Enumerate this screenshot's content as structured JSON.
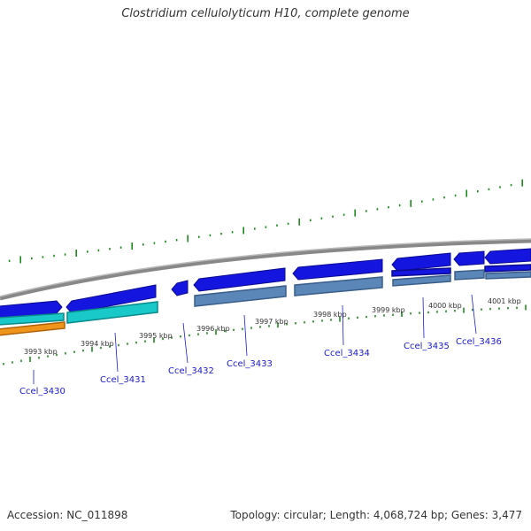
{
  "title": "Clostridium cellulolyticum H10, complete genome",
  "footer": {
    "accession": "Accession: NC_011898",
    "topology": "Topology: circular; Length: 4,068,724 bp; Genes: 3,477"
  },
  "colors": {
    "backbone": "#888888",
    "tick": "#1e8a1e",
    "gene_blue": "#1515e0",
    "gene_steel": "#5a86b8",
    "gene_cyan": "#19c8c8",
    "gene_orange": "#f0951c",
    "label": "#1a1acc"
  },
  "kbp_labels": [
    "3993 kbp",
    "3994 kbp",
    "3995 kbp",
    "3996 kbp",
    "3997 kbp",
    "3998 kbp",
    "3999 kbp",
    "4000 kbp",
    "4001 kbp"
  ],
  "gene_labels": [
    "Ccel_3430",
    "Ccel_3431",
    "Ccel_3432",
    "Ccel_3433",
    "Ccel_3434",
    "Ccel_3435",
    "Ccel_3436"
  ]
}
